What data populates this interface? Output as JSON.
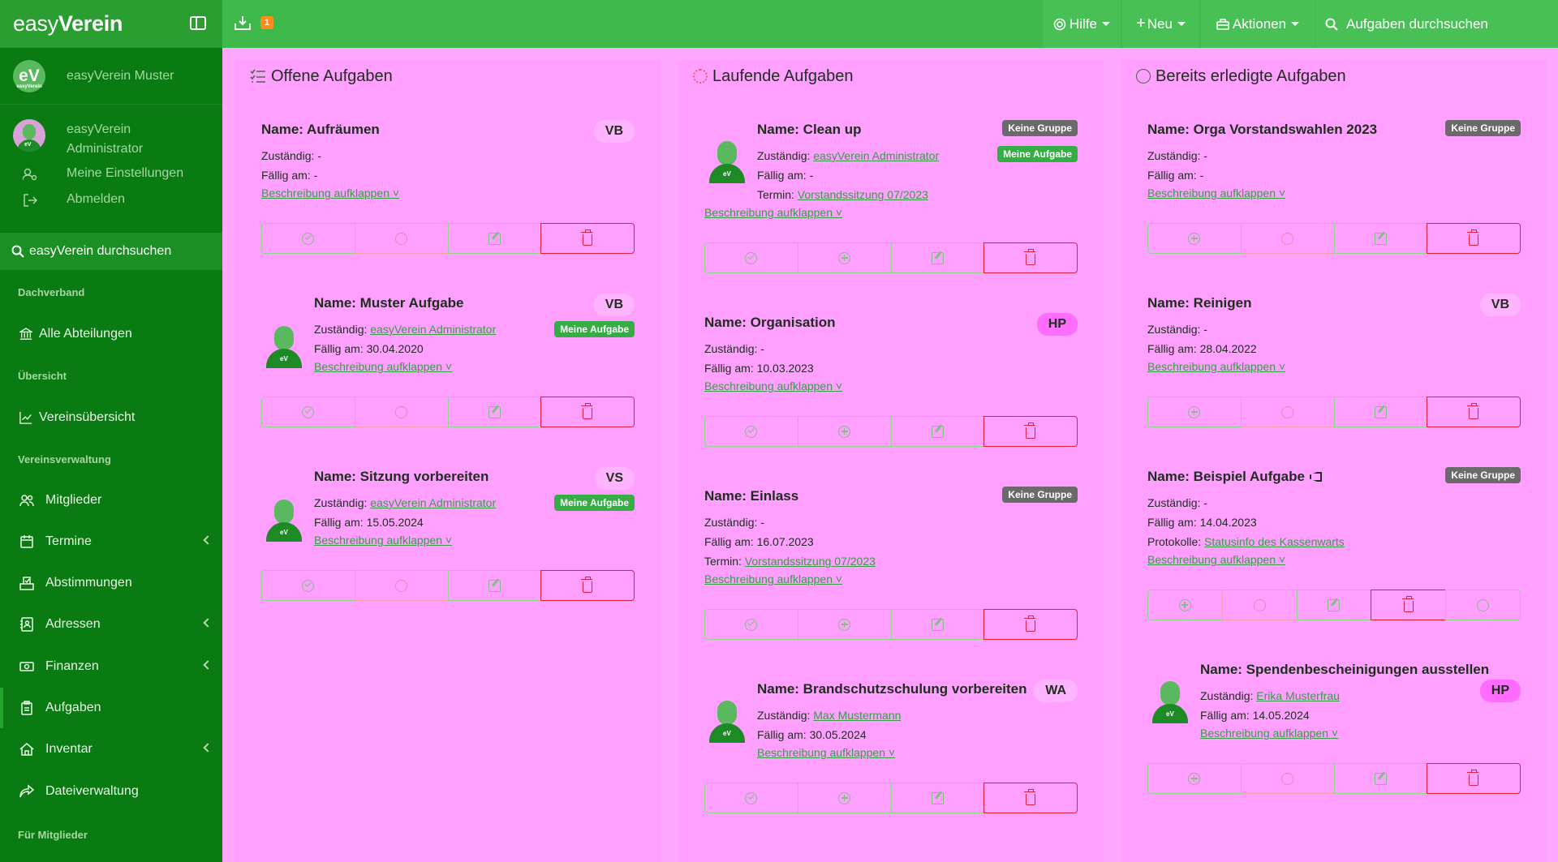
{
  "sidebar": {
    "brand": {
      "part1": "easy",
      "part2": "Verein"
    },
    "org": {
      "logo_text": "eV",
      "logo_sub": "easyVerein",
      "name": "easyVerein Muster"
    },
    "user": {
      "name": "easyVerein Administrator",
      "settings": "Meine Einstellungen",
      "logout": "Abmelden"
    },
    "search_label": "easyVerein durchsuchen",
    "sections": {
      "dachverband": "Dachverband",
      "uebersicht": "Übersicht",
      "vereinsverwaltung": "Vereinsverwaltung",
      "mitglieder": "Für Mitglieder"
    },
    "items": {
      "abteilungen": "Alle Abteilungen",
      "vereinsuebersicht": "Vereinsübersicht",
      "mitglieder": "Mitglieder",
      "termine": "Termine",
      "abstimmungen": "Abstimmungen",
      "adressen": "Adressen",
      "finanzen": "Finanzen",
      "aufgaben": "Aufgaben",
      "inventar": "Inventar",
      "dateiverwaltung": "Dateiverwaltung"
    }
  },
  "header": {
    "badge_count": "1",
    "help": "Hilfe",
    "new": "Neu",
    "actions": "Aktionen",
    "search_placeholder": "Aufgaben durchsuchen"
  },
  "columns": {
    "open": {
      "title": "Offene Aufgaben"
    },
    "running": {
      "title": "Laufende Aufgaben"
    },
    "done": {
      "title": "Bereits erledigte Aufgaben"
    }
  },
  "labels": {
    "responsible": "Zuständig:",
    "due": "Fällig am:",
    "appointment": "Termin:",
    "protocols": "Protokolle:",
    "expand": "Beschreibung aufklappen ˅",
    "no_group": "Keine Gruppe",
    "my_task": "Meine Aufgabe"
  },
  "tasks": {
    "open": [
      {
        "title": "Name: Aufräumen",
        "tag": "VB",
        "responsible": "-",
        "due": "-"
      },
      {
        "title": "Name: Muster Aufgabe",
        "tag": "VB",
        "responsible": "easyVerein Administrator",
        "due": "30.04.2020"
      },
      {
        "title": "Name: Sitzung vorbereiten",
        "tag": "VS",
        "responsible": "easyVerein Administrator",
        "due": "15.05.2024"
      }
    ],
    "running": [
      {
        "title": "Name: Clean up",
        "responsible": "easyVerein Administrator",
        "due": "-",
        "appointment": "Vorstandssitzung 07/2023"
      },
      {
        "title": "Name: Organisation",
        "tag": "HP",
        "responsible": "-",
        "due": "10.03.2023"
      },
      {
        "title": "Name: Einlass",
        "responsible": "-",
        "due": "16.07.2023",
        "appointment": "Vorstandssitzung 07/2023"
      },
      {
        "title": "Name: Brandschutzschulung vorbereiten",
        "tag": "WA",
        "responsible": "Max Mustermann",
        "due": "30.05.2024"
      }
    ],
    "done": [
      {
        "title": "Name: Orga Vorstandswahlen 2023",
        "responsible": "-",
        "due": "-"
      },
      {
        "title": "Name: Reinigen",
        "tag": "VB",
        "responsible": "-",
        "due": "28.04.2022"
      },
      {
        "title": "Name: Beispiel Aufgabe",
        "responsible": "-",
        "due": "14.04.2023",
        "protocols": "Statusinfo des Kassenwarts"
      },
      {
        "title": "Name: Spendenbescheinigungen ausstellen",
        "tag": "HP",
        "responsible": "Erika Musterfrau",
        "due": "14.05.2024"
      }
    ]
  },
  "colors": {
    "sidebar": "#0a7a12",
    "header": "#3db84a",
    "background": "#ffa8ff",
    "danger": "#e02040"
  }
}
